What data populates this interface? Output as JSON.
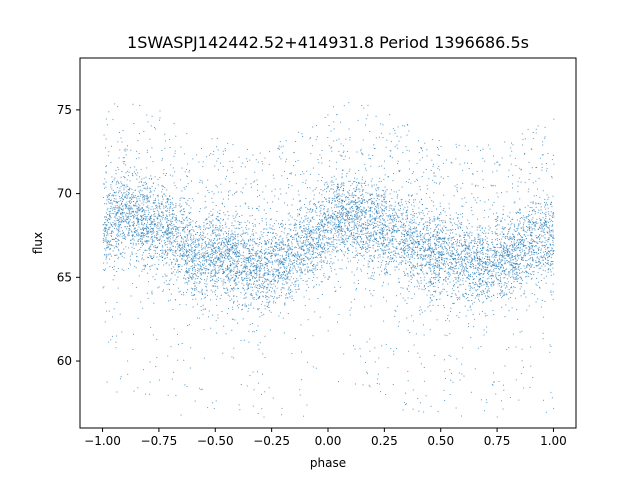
{
  "chart_data": {
    "type": "scatter",
    "title": "1SWASPJ142442.52+414931.8 Period 1396686.5s",
    "xlabel": "phase",
    "ylabel": "flux",
    "xlim": [
      -1.1,
      1.1
    ],
    "ylim": [
      56.0,
      78.1
    ],
    "xticks": [
      -1.0,
      -0.75,
      -0.5,
      -0.25,
      0.0,
      0.25,
      0.5,
      0.75,
      1.0
    ],
    "xtick_labels": [
      "−1.00",
      "−0.75",
      "−0.50",
      "−0.25",
      "0.00",
      "0.25",
      "0.50",
      "0.75",
      "1.00"
    ],
    "yticks": [
      60,
      65,
      70,
      75
    ],
    "ytick_labels": [
      "60",
      "65",
      "70",
      "75"
    ],
    "grid": false,
    "legend": "none",
    "point_color": "#1f77b4",
    "series": [
      {
        "values_description_free": true,
        "x": [
          -1.0,
          -0.95,
          -0.9,
          -0.85,
          -0.8,
          -0.75,
          -0.7,
          -0.65,
          -0.6,
          -0.55,
          -0.5,
          -0.45,
          -0.4,
          -0.35,
          -0.3,
          -0.25,
          -0.2,
          -0.15,
          -0.1,
          -0.05,
          0.0,
          0.05,
          0.1,
          0.15,
          0.2,
          0.25,
          0.3,
          0.35,
          0.4,
          0.45,
          0.5,
          0.55,
          0.6,
          0.65,
          0.7,
          0.75,
          0.8,
          0.85,
          0.9,
          0.95,
          1.0
        ],
        "y": [
          67.5,
          68.5,
          69.0,
          68.5,
          68.3,
          68.0,
          67.5,
          67.0,
          66.5,
          66.2,
          66.5,
          66.3,
          66.0,
          65.6,
          65.7,
          66.0,
          66.2,
          66.6,
          67.0,
          67.3,
          68.0,
          68.6,
          68.7,
          68.5,
          68.3,
          68.0,
          67.6,
          67.2,
          66.8,
          66.4,
          66.5,
          66.3,
          66.0,
          65.8,
          66.0,
          66.2,
          66.5,
          66.8,
          67.0,
          67.2,
          67.5
        ]
      }
    ]
  }
}
